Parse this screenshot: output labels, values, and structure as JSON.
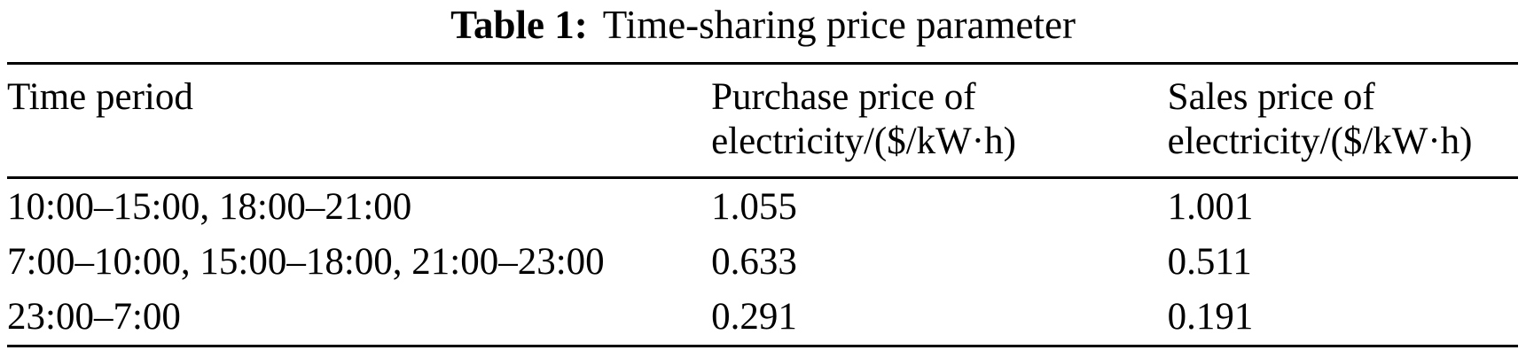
{
  "caption": {
    "label": "Table 1:",
    "title": "Time-sharing price parameter"
  },
  "table": {
    "columns": [
      {
        "line1": "Time period",
        "line2": ""
      },
      {
        "line1": "Purchase price of",
        "line2": "electricity/($/kW·h)"
      },
      {
        "line1": "Sales price of",
        "line2": "electricity/($/kW·h)"
      }
    ],
    "rows": [
      {
        "period": "10:00–15:00, 18:00–21:00",
        "purchase": "1.055",
        "sales": "1.001"
      },
      {
        "period": "7:00–10:00, 15:00–18:00, 21:00–23:00",
        "purchase": "0.633",
        "sales": "0.511"
      },
      {
        "period": "23:00–7:00",
        "purchase": "0.291",
        "sales": "0.191"
      }
    ]
  },
  "colors": {
    "text": "#000000",
    "rule": "#000000",
    "background": "#ffffff"
  }
}
